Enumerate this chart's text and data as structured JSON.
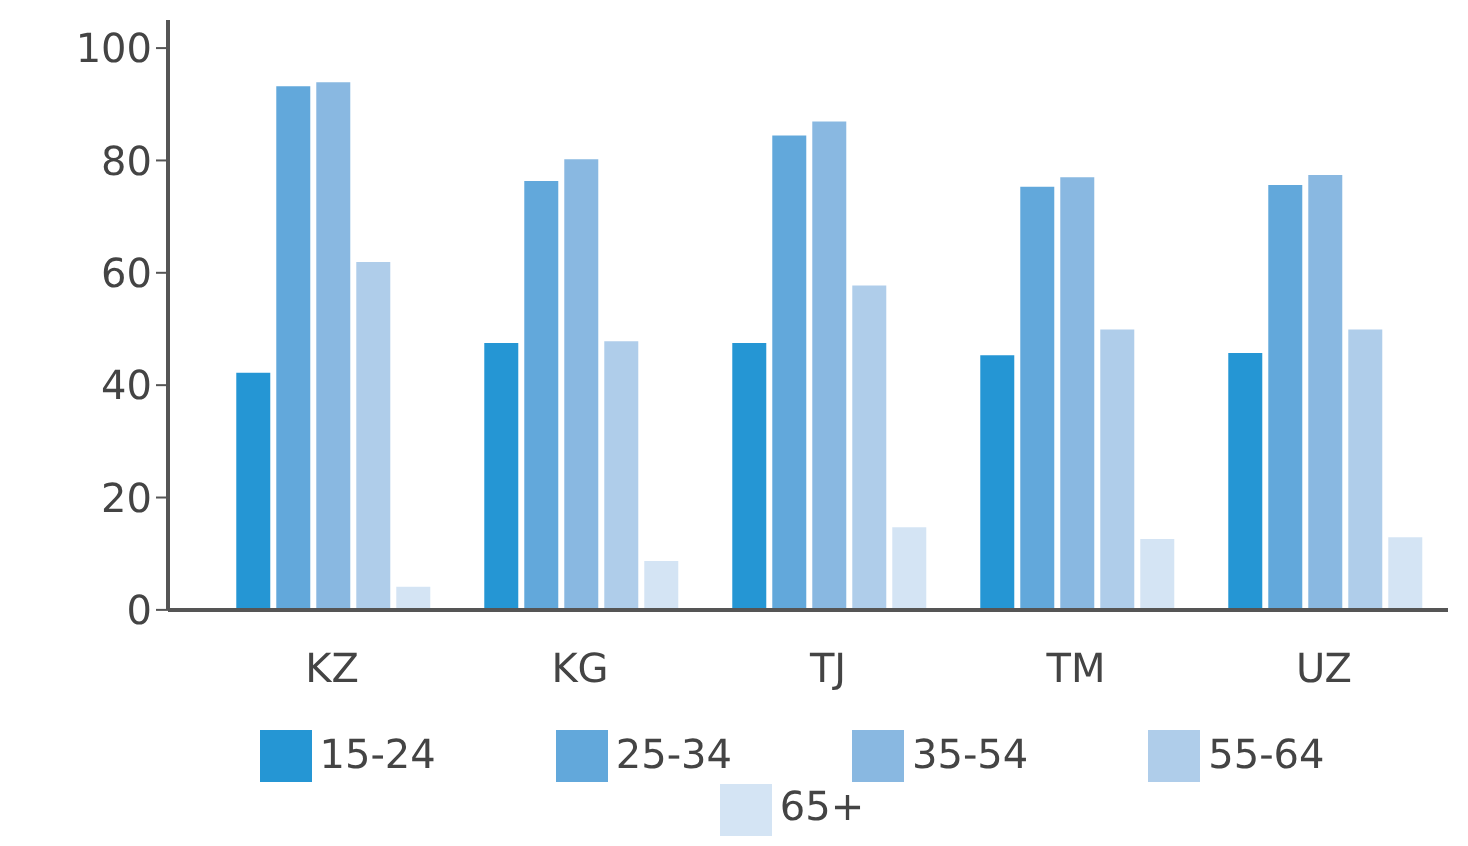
{
  "chart_data": {
    "type": "bar",
    "categories": [
      "KZ",
      "KG",
      "TJ",
      "TM",
      "UZ"
    ],
    "series": [
      {
        "name": "15-24",
        "color": "#2596d4",
        "values": [
          42.4,
          47.7,
          47.7,
          45.5,
          45.9
        ]
      },
      {
        "name": "25-34",
        "color": "#62a8db",
        "values": [
          93.4,
          76.5,
          84.6,
          75.5,
          75.8
        ]
      },
      {
        "name": "35-54",
        "color": "#89b8e1",
        "values": [
          94.1,
          80.4,
          87.1,
          77.2,
          77.6
        ]
      },
      {
        "name": "55-64",
        "color": "#afcdea",
        "values": [
          62.1,
          48.0,
          57.9,
          50.1,
          50.1
        ]
      },
      {
        "name": "65+",
        "color": "#d4e4f4",
        "values": [
          4.3,
          8.9,
          14.9,
          12.8,
          13.1
        ]
      }
    ],
    "ylim": [
      0,
      105
    ],
    "yticks": [
      0,
      20,
      40,
      60,
      80,
      100
    ],
    "grid": false,
    "legend": "bottom"
  }
}
